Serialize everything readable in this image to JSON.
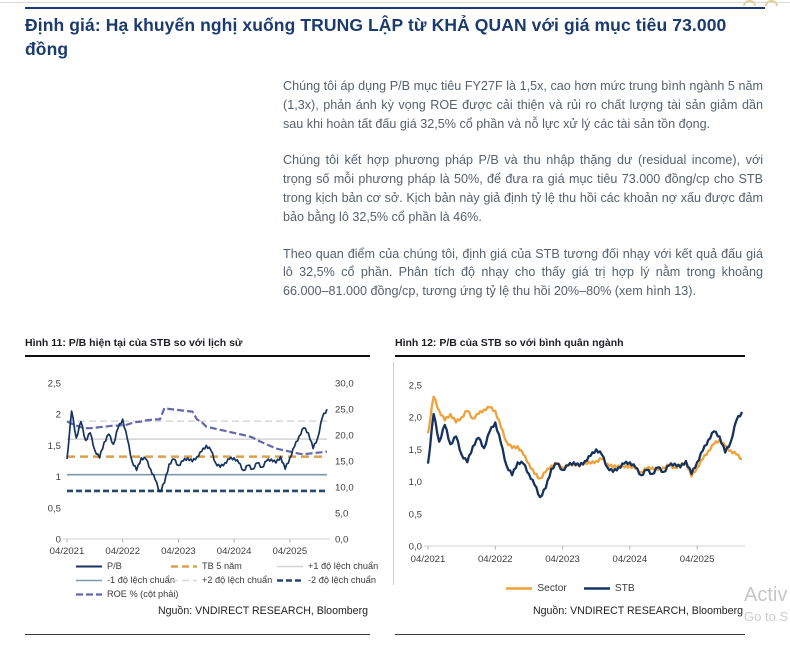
{
  "page": {
    "title": "Định giá: Hạ khuyến nghị xuống TRUNG LẬP từ KHẢ QUAN với giá mục tiêu 73.000 đồng",
    "accent_color": "#1b3a6e"
  },
  "paragraphs": [
    "Chúng tôi áp dụng P/B mục tiêu FY27F là 1,5x, cao hơn mức trung bình ngành 5 năm (1,3x), phản ánh kỳ vọng ROE được cải thiện và rủi ro chất lượng tài sản giảm dần sau khi hoàn tất đấu giá 32,5% cổ phần và nỗ lực xử lý các tài sản tồn đọng.",
    "Chúng tôi kết hợp phương pháp P/B và thu nhập thặng dư (residual income), với trọng số mỗi phương pháp là 50%, để đưa ra giá mục tiêu 73.000 đồng/cp cho STB trong kịch bản cơ sở. Kịch bản này giả định tỷ lệ thu hồi các khoản nợ xấu được đảm bảo bằng lô 32,5% cổ phần là 46%.",
    "Theo quan điểm của chúng tôi, định giá của STB tương đối nhạy với kết quả đấu giá lô 32,5% cổ phần. Phân tích độ nhạy cho thấy giá trị hợp lý nằm trong khoảng 66.000–81.000 đồng/cp, tương ứng tỷ lệ thu hồi 20%–80% (xem hình 13)."
  ],
  "figures": [
    {
      "caption": "Hình 11: P/B hiện tại của STB so với lịch sử",
      "source": "Nguồn: VNDIRECT RESEARCH, Bloomberg"
    },
    {
      "caption": "Hình 12: P/B của STB so với bình quân ngành",
      "source": "Nguồn: VNDIRECT RESEARCH, Bloomberg"
    }
  ],
  "watermark": {
    "line1": "Activ",
    "line2": "Go to S"
  },
  "chart_data": [
    {
      "type": "line",
      "title": "Hình 11: P/B hiện tại của STB so với lịch sử",
      "x_ticks": [
        "04/2021",
        "04/2022",
        "04/2023",
        "04/2024",
        "04/2025"
      ],
      "x_tick_months": [
        0,
        12,
        24,
        36,
        48
      ],
      "months_total": 57,
      "y_left": {
        "min": 0,
        "max": 2.5,
        "ticks": [
          "0",
          "0,5",
          "1",
          "1,5",
          "2",
          "2,5"
        ]
      },
      "y_right": {
        "min": 0,
        "max": 30,
        "ticks": [
          "0,0",
          "5,0",
          "10,0",
          "15,0",
          "20,0",
          "25,0",
          "30,0"
        ]
      },
      "hlines": [
        {
          "name": "TB 5 năm",
          "value": 1.32,
          "color": "#dba04c",
          "width": 2.4,
          "dash": "8,5"
        },
        {
          "name": "+1 độ lệch chuẩn",
          "value": 1.6,
          "color": "#d3d3d3",
          "width": 1.5,
          "dash": ""
        },
        {
          "name": "+2 độ lệch chuẩn",
          "value": 1.89,
          "color": "#d6d6d6",
          "width": 1.5,
          "dash": "7,4"
        },
        {
          "name": "-1 độ lệch chuẩn",
          "value": 1.03,
          "color": "#7d9aa9",
          "width": 1.6,
          "dash": ""
        },
        {
          "name": "-2 độ lệch chuẩn",
          "value": 0.77,
          "color": "#24466f",
          "width": 2.6,
          "dash": "6,3"
        }
      ],
      "series": [
        {
          "name": "ROE % (cột phải)",
          "axis": "right",
          "color": "#6467ae",
          "width": 2.2,
          "dash": "7,3",
          "jitter": 0,
          "values": [
            22.6,
            22.2,
            21.8,
            21.5,
            21.3,
            21.3,
            21.4,
            21.5,
            21.6,
            21.7,
            21.8,
            21.8,
            21.9,
            22.0,
            22.3,
            22.5,
            22.6,
            22.8,
            22.9,
            23.0,
            23.0,
            25.2,
            25.0,
            24.9,
            24.8,
            24.7,
            24.6,
            24.5,
            23.0,
            22.5,
            21.6,
            21.4,
            21.2,
            21.0,
            20.8,
            20.6,
            20.4,
            20.2,
            20.0,
            19.8,
            19.5,
            19.0,
            18.6,
            18.2,
            17.8,
            17.4,
            17.2,
            17.0,
            16.8,
            16.6,
            16.4,
            16.3,
            16.4,
            16.5,
            16.6,
            16.7,
            16.8
          ]
        },
        {
          "name": "P/B",
          "axis": "left",
          "color": "#16335f",
          "width": 1.7,
          "dash": "",
          "jitter": 0.022,
          "values": [
            1.28,
            2.05,
            1.62,
            1.88,
            1.58,
            1.7,
            1.42,
            1.3,
            1.55,
            1.68,
            1.52,
            1.78,
            1.92,
            1.6,
            1.25,
            1.1,
            1.3,
            1.28,
            1.12,
            0.95,
            0.76,
            0.9,
            1.2,
            1.28,
            1.18,
            1.25,
            1.3,
            1.24,
            1.32,
            1.4,
            1.5,
            1.42,
            1.22,
            1.15,
            1.22,
            1.28,
            1.3,
            1.22,
            1.1,
            1.18,
            1.12,
            1.22,
            1.15,
            1.25,
            1.28,
            1.22,
            1.32,
            1.12,
            1.3,
            1.48,
            1.65,
            1.78,
            1.7,
            1.45,
            1.62,
            1.95,
            2.08
          ]
        }
      ],
      "legend": [
        {
          "label": "P/B",
          "color": "#16335f",
          "width": 2.0,
          "dash": ""
        },
        {
          "label": "TB 5 năm",
          "color": "#dba04c",
          "width": 2.4,
          "dash": "7,4"
        },
        {
          "label": "+1 độ lệch chuẩn",
          "color": "#d3d3d3",
          "width": 1.5,
          "dash": ""
        },
        {
          "label": "-1 độ lệch chuẩn",
          "color": "#7d9aa9",
          "width": 1.6,
          "dash": ""
        },
        {
          "label": "+2 độ lệch chuẩn",
          "color": "#d6d6d6",
          "width": 1.5,
          "dash": "7,4"
        },
        {
          "label": "-2 độ lệch chuẩn",
          "color": "#24466f",
          "width": 2.6,
          "dash": "6,3"
        },
        {
          "label": "ROE % (cột phải)",
          "color": "#6467ae",
          "width": 2.2,
          "dash": "7,3"
        }
      ],
      "legend_layout": "grid",
      "source": "Nguồn: VNDIRECT RESEARCH, Bloomberg"
    },
    {
      "type": "line",
      "title": "Hình 12: P/B của STB so với bình quân ngành",
      "x_ticks": [
        "04/2021",
        "04/2022",
        "04/2023",
        "04/2024",
        "04/2025"
      ],
      "x_tick_months": [
        0,
        12,
        24,
        36,
        48
      ],
      "months_total": 57,
      "y_left": {
        "min": 0,
        "max": 2.5,
        "ticks": [
          "0,0",
          "0,5",
          "1,0",
          "1,5",
          "2,0",
          "2,5"
        ]
      },
      "hlines": [],
      "series": [
        {
          "name": "Sector",
          "axis": "left",
          "color": "#eda23c",
          "width": 2.3,
          "dash": "",
          "jitter": 0.022,
          "values": [
            1.75,
            2.32,
            2.1,
            1.95,
            2.05,
            1.92,
            2.0,
            2.1,
            1.98,
            2.05,
            2.12,
            2.15,
            2.1,
            1.85,
            1.62,
            1.52,
            1.55,
            1.42,
            1.28,
            1.12,
            1.05,
            1.15,
            1.25,
            1.28,
            1.22,
            1.25,
            1.28,
            1.24,
            1.3,
            1.28,
            1.32,
            1.35,
            1.28,
            1.22,
            1.25,
            1.22,
            1.25,
            1.2,
            1.15,
            1.2,
            1.22,
            1.18,
            1.22,
            1.25,
            1.22,
            1.25,
            1.3,
            1.08,
            1.22,
            1.35,
            1.48,
            1.58,
            1.65,
            1.55,
            1.48,
            1.42,
            1.35
          ]
        },
        {
          "name": "STB",
          "axis": "left",
          "color": "#16335f",
          "width": 2.3,
          "dash": "",
          "jitter": 0.022,
          "values": [
            1.28,
            2.05,
            1.62,
            1.88,
            1.58,
            1.7,
            1.42,
            1.3,
            1.55,
            1.68,
            1.52,
            1.78,
            1.92,
            1.6,
            1.25,
            1.1,
            1.3,
            1.28,
            1.12,
            0.95,
            0.76,
            0.9,
            1.2,
            1.28,
            1.18,
            1.25,
            1.3,
            1.24,
            1.32,
            1.4,
            1.5,
            1.42,
            1.22,
            1.15,
            1.22,
            1.28,
            1.3,
            1.22,
            1.1,
            1.18,
            1.12,
            1.22,
            1.15,
            1.25,
            1.28,
            1.22,
            1.32,
            1.12,
            1.3,
            1.48,
            1.65,
            1.78,
            1.7,
            1.45,
            1.62,
            1.95,
            2.08
          ]
        }
      ],
      "legend": [
        {
          "label": "Sector",
          "color": "#eda23c",
          "width": 2.6,
          "dash": ""
        },
        {
          "label": "STB",
          "color": "#16335f",
          "width": 2.6,
          "dash": ""
        }
      ],
      "legend_layout": "center",
      "source": "Nguồn: VNDIRECT RESEARCH, Bloomberg"
    }
  ]
}
